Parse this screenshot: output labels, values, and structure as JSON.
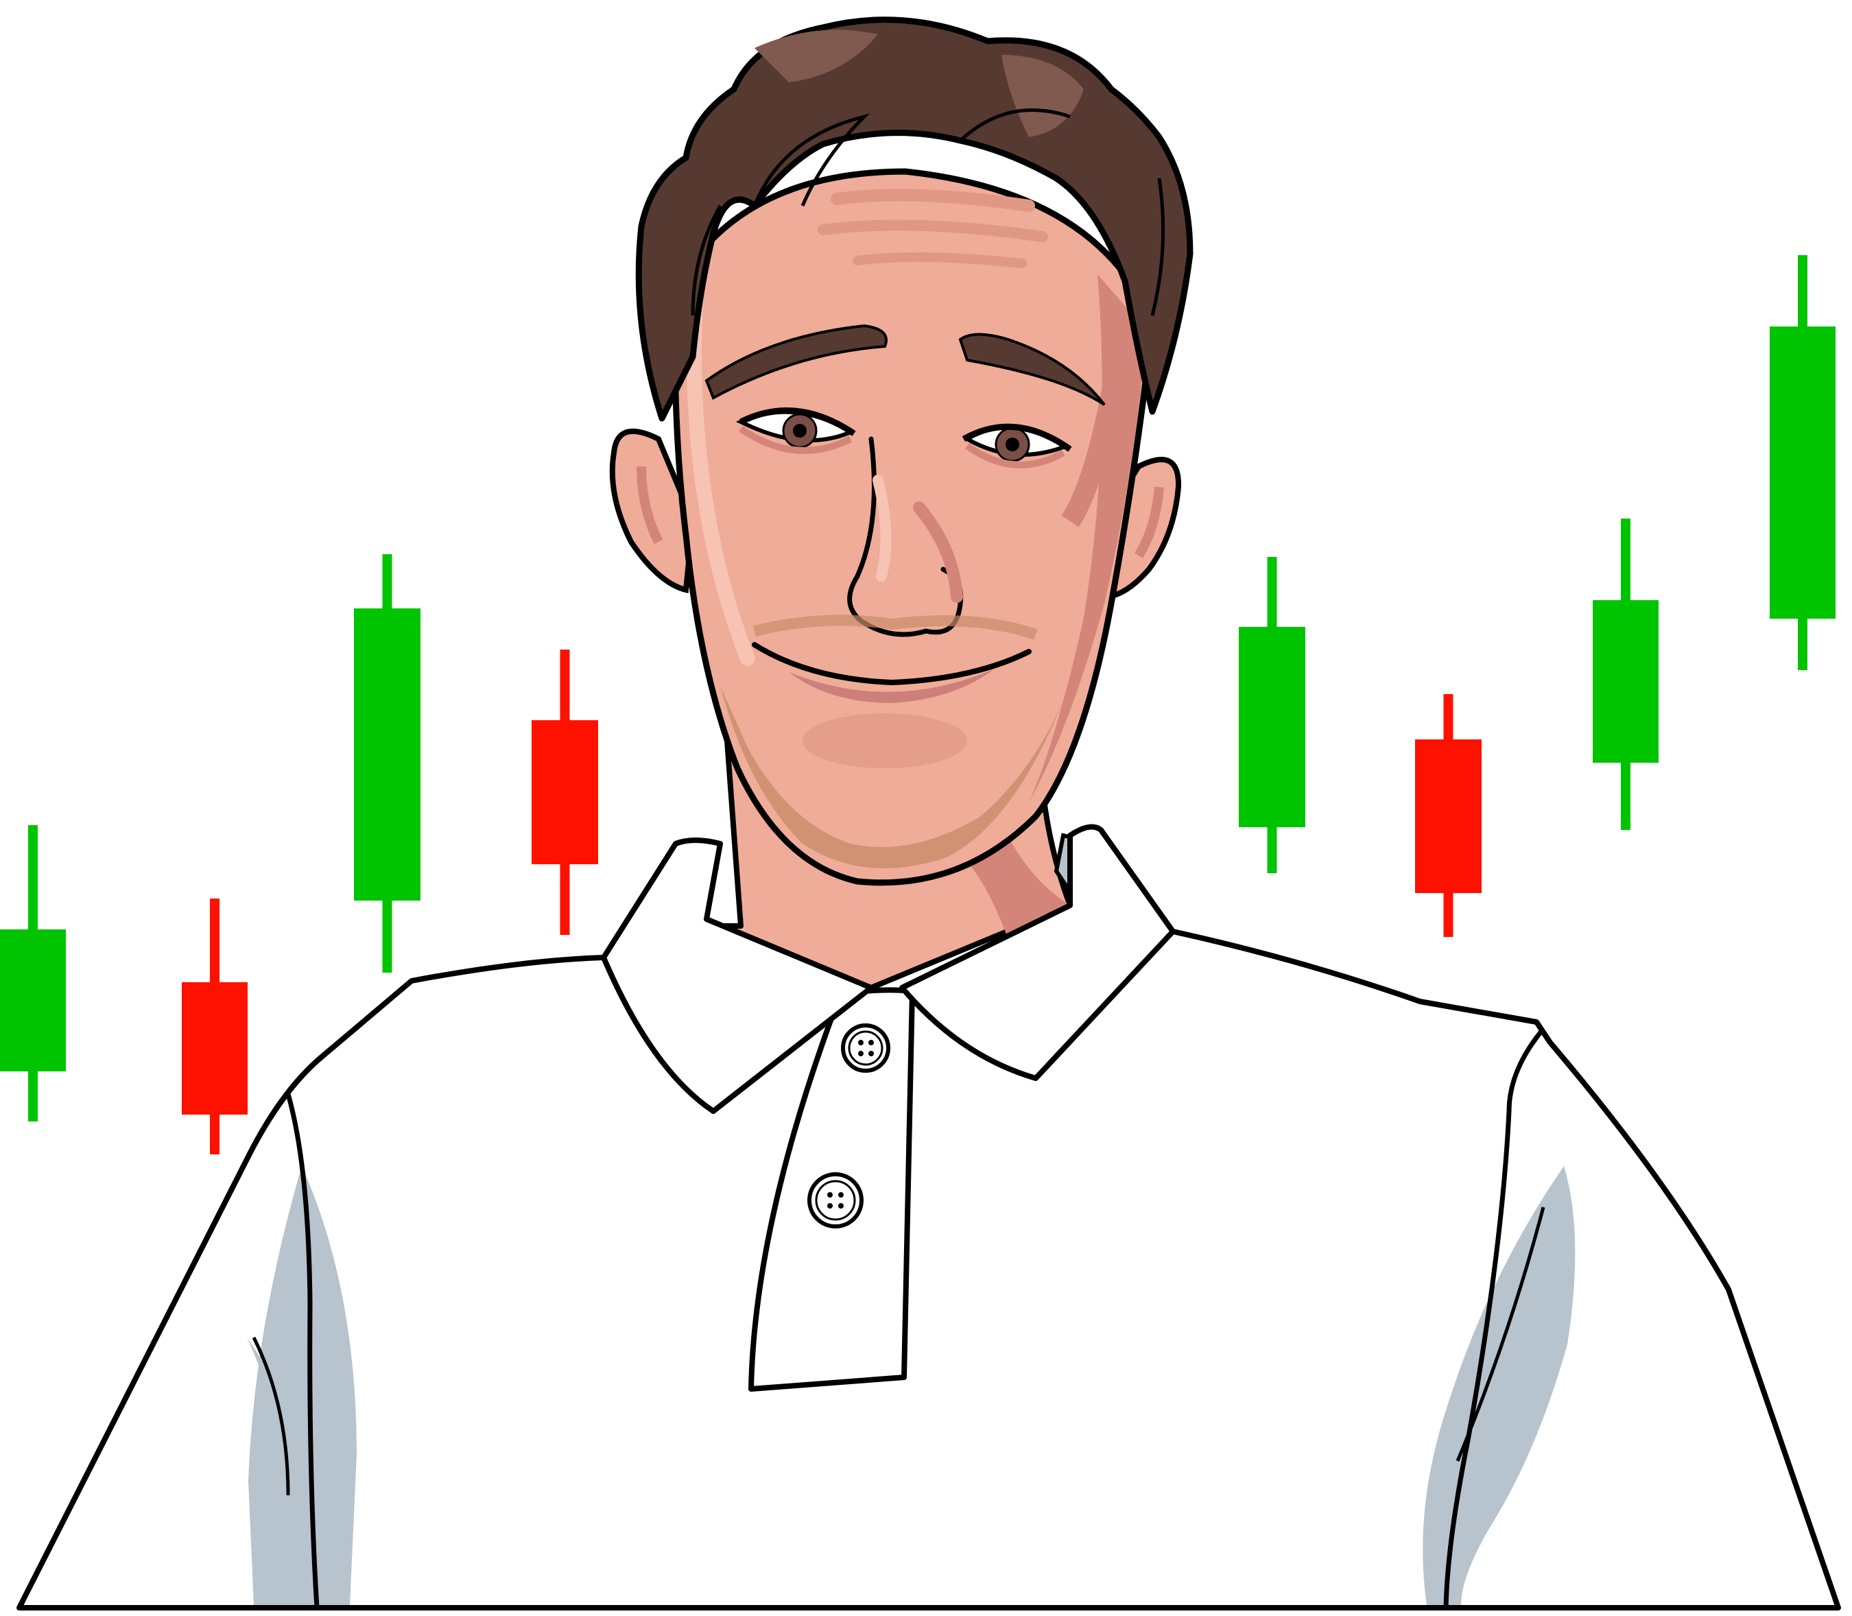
{
  "illustration": {
    "subject": "cartoon-man-in-polo-shirt",
    "background": "candlestick-pattern"
  },
  "candles": [
    {
      "direction": "up",
      "color": "#00c400"
    },
    {
      "direction": "down",
      "color": "#ff1100"
    },
    {
      "direction": "up",
      "color": "#00c400"
    },
    {
      "direction": "down",
      "color": "#ff1100"
    },
    {
      "direction": "up",
      "color": "#00c400"
    },
    {
      "direction": "down",
      "color": "#ff1100"
    },
    {
      "direction": "up",
      "color": "#00c400"
    },
    {
      "direction": "up",
      "color": "#00c400"
    }
  ],
  "colors": {
    "skin": "#efac98",
    "skin_shadow": "#d4857a",
    "hair": "#563a31",
    "hair_highlight": "#80594f",
    "shirt": "#ffffff",
    "shirt_shadow": "#b7c3cd",
    "outline": "#000000",
    "iris": "#7a5046",
    "lip": "#cd7f7a"
  }
}
